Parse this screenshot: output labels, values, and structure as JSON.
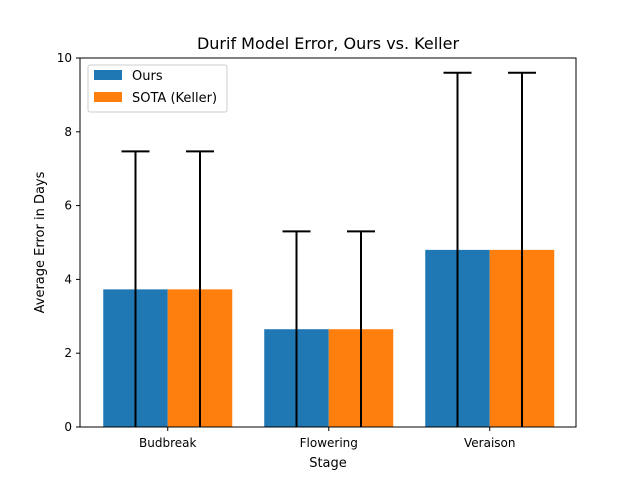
{
  "chart_data": {
    "type": "bar",
    "title": "Durif Model Error, Ours vs. Keller",
    "xlabel": "Stage",
    "ylabel": "Average Error in Days",
    "categories": [
      "Budbreak",
      "Flowering",
      "Veraison"
    ],
    "series": [
      {
        "name": "Ours",
        "values": [
          3.73,
          2.65,
          4.8
        ],
        "error_upper": [
          7.47,
          5.3,
          9.6
        ],
        "color": "#1f77b4"
      },
      {
        "name": "SOTA (Keller)",
        "values": [
          3.73,
          2.65,
          4.8
        ],
        "error_upper": [
          7.47,
          5.3,
          9.6
        ],
        "color": "#ff7f0e"
      }
    ],
    "ylim": [
      0,
      10
    ],
    "yticks": [
      "0",
      "2",
      "4",
      "6",
      "8",
      "10"
    ],
    "legend_position": "top-left",
    "grid": false
  }
}
